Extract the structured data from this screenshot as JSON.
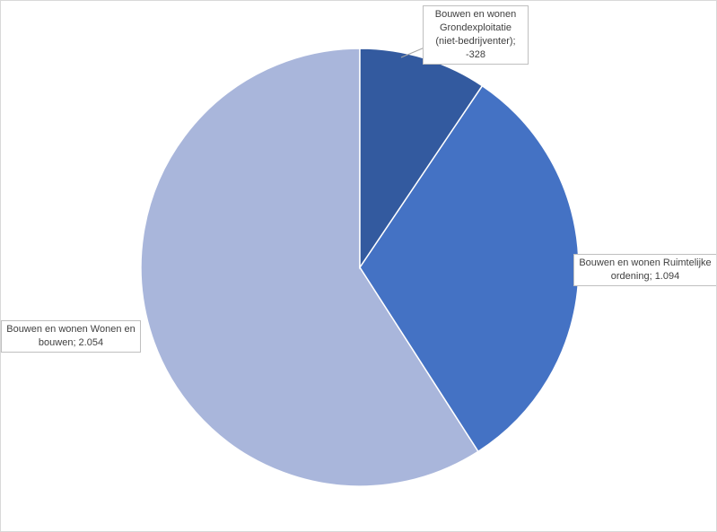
{
  "chart_data": {
    "type": "pie",
    "values": [
      -328,
      1094,
      2054
    ],
    "value_labels": [
      "Bouwen en wonen Grondexploitatie (niet-bedrijventer); -328",
      "Bouwen en wonen Ruimtelijke ordening; 1.094",
      "Bouwen en wonen Wonen en bouwen; 2.054"
    ],
    "colors": [
      "#335a9f",
      "#4472c4",
      "#a9b6db"
    ]
  }
}
